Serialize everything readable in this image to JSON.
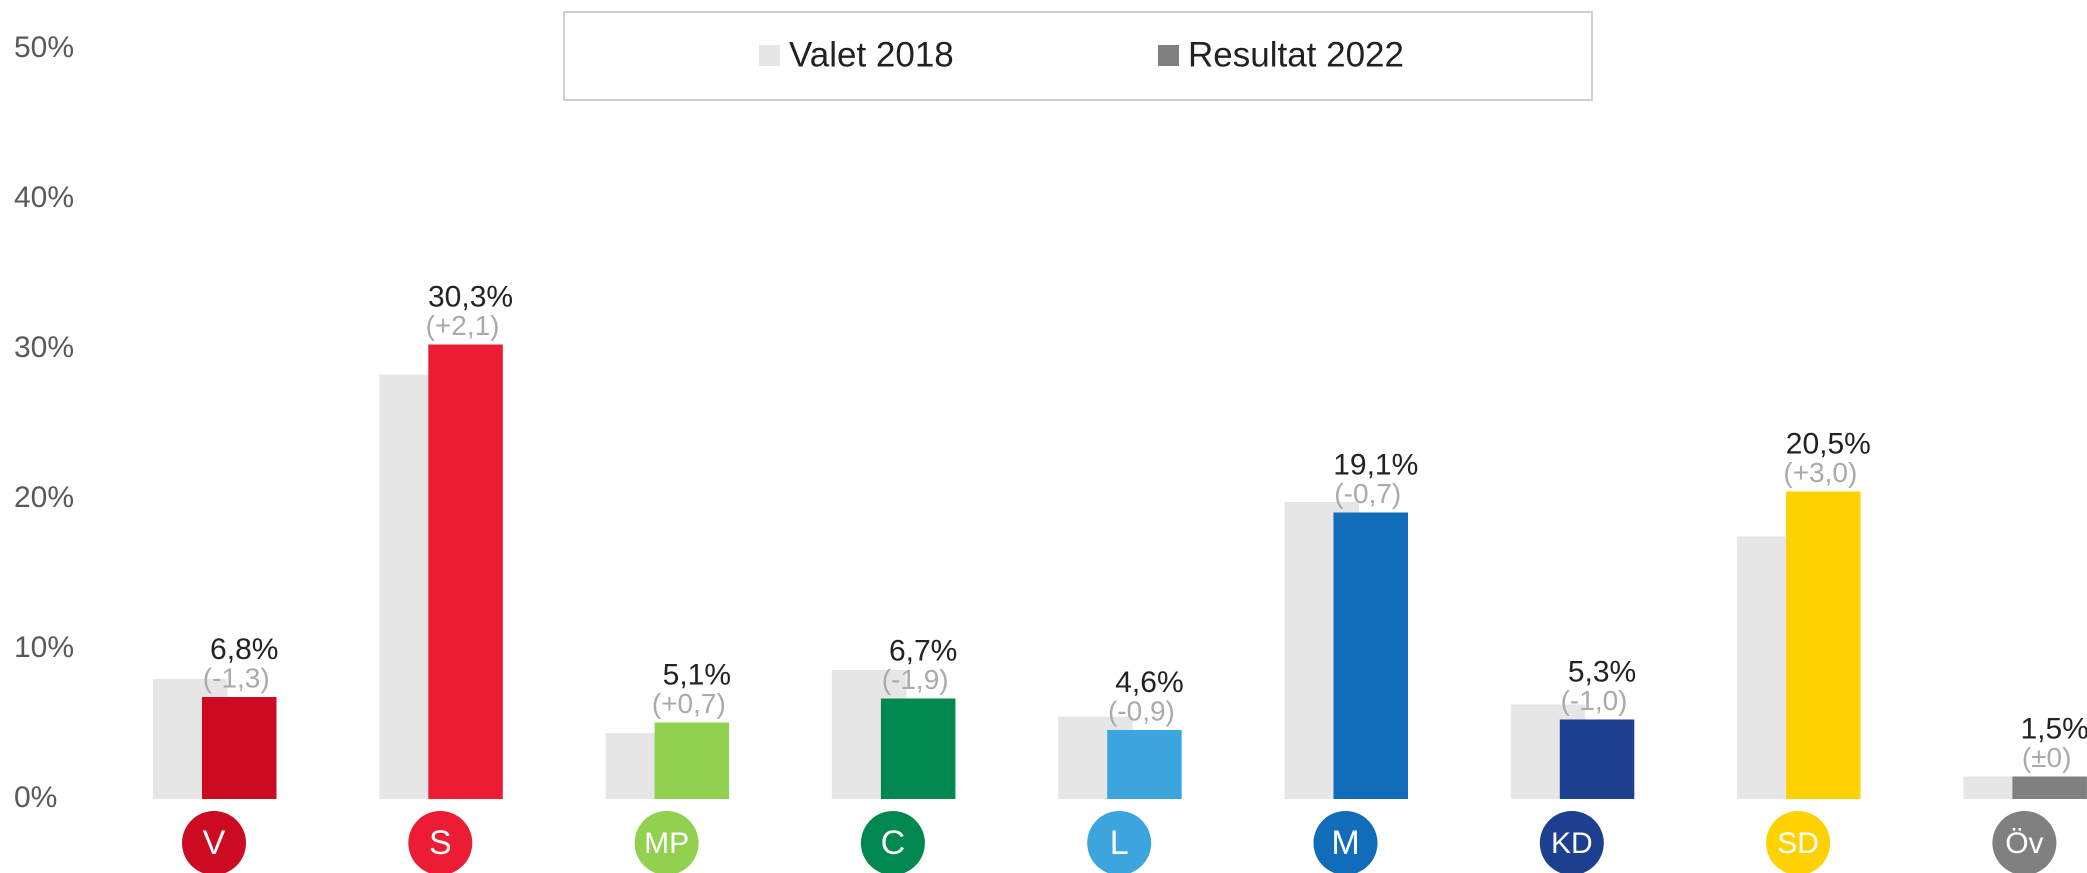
{
  "chart_data": {
    "type": "bar",
    "categories": [
      "V",
      "S",
      "MP",
      "C",
      "L",
      "M",
      "KD",
      "SD",
      "Öv"
    ],
    "category_colors": [
      "#cc0a22",
      "#ec1c34",
      "#92d050",
      "#008850",
      "#3ca5dd",
      "#116cb9",
      "#1c3f8f",
      "#ffd100",
      "#808080"
    ],
    "series": [
      {
        "name": "Valet 2018",
        "color": "#e6e6e6",
        "values": [
          8.0,
          28.3,
          4.4,
          8.6,
          5.5,
          19.8,
          6.3,
          17.5,
          1.5
        ]
      },
      {
        "name": "Resultat 2022",
        "color": "#808080",
        "point_colors": [
          "#cc0a22",
          "#ec1c34",
          "#92d050",
          "#008850",
          "#3ca5dd",
          "#116cb9",
          "#1c3f8f",
          "#ffd100",
          "#808080"
        ],
        "values": [
          6.8,
          30.3,
          5.1,
          6.7,
          4.6,
          19.1,
          5.3,
          20.5,
          1.5
        ],
        "value_labels": [
          "6,8%",
          "30,3%",
          "5,1%",
          "6,7%",
          "4,6%",
          "19,1%",
          "5,3%",
          "20,5%",
          "1,5%"
        ],
        "change_labels": [
          "(-1,3)",
          "(+2,1)",
          "(+0,7)",
          "(-1,9)",
          "(-0,9)",
          "(-0,7)",
          "(-1,0)",
          "(+3,0)",
          "(±0)"
        ]
      }
    ],
    "ylim": [
      0,
      50
    ],
    "yticks": [
      {
        "value": 0,
        "label": "0%"
      },
      {
        "value": 10,
        "label": "10%"
      },
      {
        "value": 20,
        "label": "20%"
      },
      {
        "value": 30,
        "label": "30%"
      },
      {
        "value": 40,
        "label": "40%"
      },
      {
        "value": 50,
        "label": "50%"
      }
    ],
    "grid": false,
    "legend": "top"
  }
}
